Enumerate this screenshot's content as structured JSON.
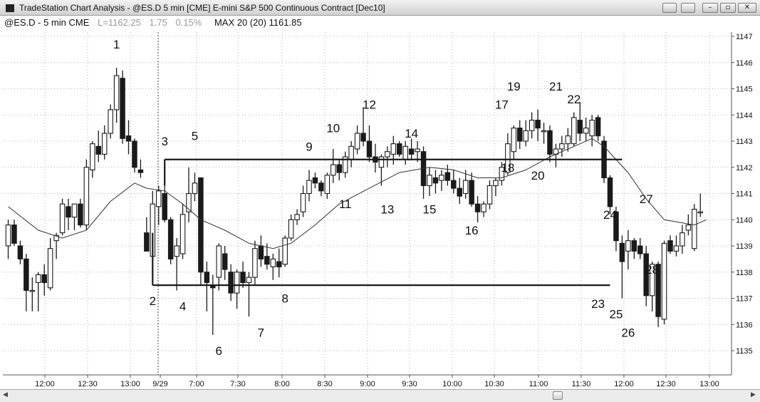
{
  "window": {
    "title": "TradeStation Chart Analysis - @ES.D 5 min [CME] E-mini S&P 500 Continuous Contract [Dec10]",
    "buttons": {
      "minimize": "–",
      "restore": "▫",
      "close": "✕"
    }
  },
  "info": {
    "symbol": "@ES.D - 5 min CME",
    "last": "L=1162.25",
    "change": "1.75",
    "change_pct": "0.15%",
    "study": "MAX 20 (20) 1161.85"
  },
  "colors": {
    "up_fill": "#ffffff",
    "down_fill": "#1a1a1a",
    "outline": "#1a1a1a",
    "ma": "#333333",
    "grid": "#b5b5b5"
  },
  "chart_data": {
    "type": "candlestick",
    "y_ticks": [
      1135,
      1136,
      1137,
      1138,
      1139,
      1140,
      1141,
      1142,
      1143,
      1144,
      1145,
      1146,
      1147
    ],
    "ylim": [
      1134.2,
      1147.4
    ],
    "x_tick_labels": [
      "12:00",
      "12:30",
      "13:00",
      "9/29",
      "7:00",
      "7:30",
      "8:00",
      "8:30",
      "9:00",
      "9:30",
      "10:00",
      "10:30",
      "11:00",
      "11:30",
      "12:00",
      "12:30",
      "13:00"
    ],
    "session_break_after_bar": 23,
    "candles": [
      {
        "o": 1139.0,
        "h": 1140.0,
        "l": 1138.5,
        "c": 1139.8
      },
      {
        "o": 1139.8,
        "h": 1140.0,
        "l": 1139.0,
        "c": 1139.1
      },
      {
        "o": 1139.0,
        "h": 1139.2,
        "l": 1138.3,
        "c": 1138.5
      },
      {
        "o": 1138.5,
        "h": 1138.7,
        "l": 1136.5,
        "c": 1137.3
      },
      {
        "o": 1137.3,
        "h": 1137.8,
        "l": 1136.5,
        "c": 1137.3
      },
      {
        "o": 1137.6,
        "h": 1138.0,
        "l": 1136.5,
        "c": 1137.9
      },
      {
        "o": 1137.9,
        "h": 1138.3,
        "l": 1137.1,
        "c": 1137.6
      },
      {
        "o": 1137.4,
        "h": 1139.3,
        "l": 1137.3,
        "c": 1138.9
      },
      {
        "o": 1139.2,
        "h": 1139.5,
        "l": 1138.5,
        "c": 1139.4
      },
      {
        "o": 1139.5,
        "h": 1140.8,
        "l": 1139.4,
        "c": 1140.6
      },
      {
        "o": 1140.5,
        "h": 1140.8,
        "l": 1139.6,
        "c": 1140.1
      },
      {
        "o": 1140.1,
        "h": 1140.6,
        "l": 1139.6,
        "c": 1140.6
      },
      {
        "o": 1140.6,
        "h": 1140.8,
        "l": 1139.7,
        "c": 1139.8
      },
      {
        "o": 1139.8,
        "h": 1142.3,
        "l": 1139.6,
        "c": 1142.0
      },
      {
        "o": 1141.9,
        "h": 1143.0,
        "l": 1141.6,
        "c": 1142.9
      },
      {
        "o": 1142.8,
        "h": 1143.4,
        "l": 1142.2,
        "c": 1142.5
      },
      {
        "o": 1142.5,
        "h": 1143.6,
        "l": 1142.3,
        "c": 1143.3
      },
      {
        "o": 1143.3,
        "h": 1144.4,
        "l": 1143.1,
        "c": 1144.2
      },
      {
        "o": 1144.2,
        "h": 1145.8,
        "l": 1143.7,
        "c": 1145.5
      },
      {
        "o": 1145.4,
        "h": 1145.7,
        "l": 1142.9,
        "c": 1143.1
      },
      {
        "o": 1143.2,
        "h": 1143.8,
        "l": 1142.5,
        "c": 1143.0
      },
      {
        "o": 1143.0,
        "h": 1143.1,
        "l": 1141.8,
        "c": 1142.0
      },
      {
        "o": 1141.9,
        "h": 1142.3,
        "l": 1141.6,
        "c": 1141.8
      },
      {
        "o": 1139.5,
        "h": 1140.1,
        "l": 1138.8,
        "c": 1138.8
      },
      {
        "o": 1138.6,
        "h": 1141.1,
        "l": 1137.8,
        "c": 1140.6
      },
      {
        "o": 1140.5,
        "h": 1141.3,
        "l": 1139.8,
        "c": 1141.1
      },
      {
        "o": 1141.0,
        "h": 1141.3,
        "l": 1139.9,
        "c": 1140.0
      },
      {
        "o": 1140.0,
        "h": 1140.1,
        "l": 1138.3,
        "c": 1138.5
      },
      {
        "o": 1138.6,
        "h": 1139.3,
        "l": 1137.3,
        "c": 1139.0
      },
      {
        "o": 1138.7,
        "h": 1140.6,
        "l": 1138.5,
        "c": 1140.2
      },
      {
        "o": 1140.3,
        "h": 1142.0,
        "l": 1139.9,
        "c": 1141.0
      },
      {
        "o": 1141.0,
        "h": 1141.8,
        "l": 1140.7,
        "c": 1141.4
      },
      {
        "o": 1141.6,
        "h": 1141.6,
        "l": 1137.5,
        "c": 1138.0
      },
      {
        "o": 1138.0,
        "h": 1138.4,
        "l": 1136.5,
        "c": 1137.6
      },
      {
        "o": 1137.5,
        "h": 1137.9,
        "l": 1135.6,
        "c": 1137.4
      },
      {
        "o": 1137.8,
        "h": 1139.1,
        "l": 1137.3,
        "c": 1139.0
      },
      {
        "o": 1138.7,
        "h": 1139.0,
        "l": 1137.7,
        "c": 1138.1
      },
      {
        "o": 1138.0,
        "h": 1138.3,
        "l": 1136.9,
        "c": 1137.2
      },
      {
        "o": 1137.2,
        "h": 1138.1,
        "l": 1136.6,
        "c": 1138.0
      },
      {
        "o": 1138.0,
        "h": 1138.4,
        "l": 1137.4,
        "c": 1137.6
      },
      {
        "o": 1137.6,
        "h": 1138.0,
        "l": 1136.3,
        "c": 1137.8
      },
      {
        "o": 1137.8,
        "h": 1139.2,
        "l": 1137.5,
        "c": 1138.9
      },
      {
        "o": 1139.0,
        "h": 1139.4,
        "l": 1138.2,
        "c": 1138.5
      },
      {
        "o": 1138.6,
        "h": 1139.1,
        "l": 1138.1,
        "c": 1138.3
      },
      {
        "o": 1138.2,
        "h": 1138.7,
        "l": 1137.7,
        "c": 1138.5
      },
      {
        "o": 1138.4,
        "h": 1138.9,
        "l": 1137.8,
        "c": 1138.2
      },
      {
        "o": 1138.3,
        "h": 1139.4,
        "l": 1138.2,
        "c": 1139.3
      },
      {
        "o": 1139.3,
        "h": 1140.2,
        "l": 1139.2,
        "c": 1140.0
      },
      {
        "o": 1140.0,
        "h": 1140.4,
        "l": 1139.8,
        "c": 1140.2
      },
      {
        "o": 1140.3,
        "h": 1141.3,
        "l": 1140.1,
        "c": 1141.0
      },
      {
        "o": 1141.0,
        "h": 1141.9,
        "l": 1140.7,
        "c": 1141.5
      },
      {
        "o": 1141.6,
        "h": 1141.8,
        "l": 1141.2,
        "c": 1141.4
      },
      {
        "o": 1141.4,
        "h": 1141.5,
        "l": 1140.9,
        "c": 1141.1
      },
      {
        "o": 1141.0,
        "h": 1141.8,
        "l": 1140.8,
        "c": 1141.7
      },
      {
        "o": 1141.7,
        "h": 1142.7,
        "l": 1141.4,
        "c": 1142.1
      },
      {
        "o": 1142.1,
        "h": 1142.3,
        "l": 1141.5,
        "c": 1141.8
      },
      {
        "o": 1141.8,
        "h": 1142.6,
        "l": 1141.6,
        "c": 1142.4
      },
      {
        "o": 1142.3,
        "h": 1143.0,
        "l": 1142.0,
        "c": 1142.8
      },
      {
        "o": 1142.7,
        "h": 1143.6,
        "l": 1142.5,
        "c": 1143.3
      },
      {
        "o": 1143.3,
        "h": 1144.3,
        "l": 1142.8,
        "c": 1143.0
      },
      {
        "o": 1143.0,
        "h": 1143.6,
        "l": 1142.2,
        "c": 1142.4
      },
      {
        "o": 1142.4,
        "h": 1142.9,
        "l": 1141.8,
        "c": 1142.2
      },
      {
        "o": 1142.0,
        "h": 1142.5,
        "l": 1141.3,
        "c": 1142.4
      },
      {
        "o": 1142.4,
        "h": 1142.8,
        "l": 1142.0,
        "c": 1142.6
      },
      {
        "o": 1142.5,
        "h": 1143.2,
        "l": 1142.1,
        "c": 1142.9
      },
      {
        "o": 1142.9,
        "h": 1143.0,
        "l": 1142.4,
        "c": 1142.5
      },
      {
        "o": 1142.3,
        "h": 1143.0,
        "l": 1142.1,
        "c": 1142.8
      },
      {
        "o": 1142.7,
        "h": 1143.1,
        "l": 1142.3,
        "c": 1142.5
      },
      {
        "o": 1142.6,
        "h": 1143.0,
        "l": 1142.2,
        "c": 1142.7
      },
      {
        "o": 1142.6,
        "h": 1142.8,
        "l": 1140.8,
        "c": 1141.3
      },
      {
        "o": 1141.3,
        "h": 1142.0,
        "l": 1140.9,
        "c": 1141.7
      },
      {
        "o": 1141.6,
        "h": 1141.9,
        "l": 1141.0,
        "c": 1141.4
      },
      {
        "o": 1141.5,
        "h": 1141.9,
        "l": 1141.1,
        "c": 1141.7
      },
      {
        "o": 1141.8,
        "h": 1142.1,
        "l": 1141.3,
        "c": 1141.5
      },
      {
        "o": 1141.5,
        "h": 1141.9,
        "l": 1141.0,
        "c": 1141.2
      },
      {
        "o": 1141.2,
        "h": 1141.6,
        "l": 1140.6,
        "c": 1140.9
      },
      {
        "o": 1141.0,
        "h": 1141.9,
        "l": 1140.8,
        "c": 1141.5
      },
      {
        "o": 1141.5,
        "h": 1141.8,
        "l": 1140.5,
        "c": 1140.6
      },
      {
        "o": 1140.6,
        "h": 1140.9,
        "l": 1139.9,
        "c": 1140.3
      },
      {
        "o": 1140.3,
        "h": 1140.7,
        "l": 1140.1,
        "c": 1140.6
      },
      {
        "o": 1140.6,
        "h": 1141.5,
        "l": 1140.4,
        "c": 1141.3
      },
      {
        "o": 1141.3,
        "h": 1141.6,
        "l": 1140.9,
        "c": 1141.5
      },
      {
        "o": 1141.5,
        "h": 1142.2,
        "l": 1141.3,
        "c": 1142.0
      },
      {
        "o": 1141.8,
        "h": 1143.3,
        "l": 1141.7,
        "c": 1142.9
      },
      {
        "o": 1142.6,
        "h": 1143.6,
        "l": 1142.3,
        "c": 1143.5
      },
      {
        "o": 1143.5,
        "h": 1143.8,
        "l": 1142.7,
        "c": 1143.0
      },
      {
        "o": 1143.0,
        "h": 1143.8,
        "l": 1142.8,
        "c": 1143.4
      },
      {
        "o": 1143.4,
        "h": 1144.1,
        "l": 1143.1,
        "c": 1143.8
      },
      {
        "o": 1143.8,
        "h": 1144.2,
        "l": 1143.0,
        "c": 1143.5
      },
      {
        "o": 1143.4,
        "h": 1143.7,
        "l": 1142.9,
        "c": 1143.4
      },
      {
        "o": 1143.4,
        "h": 1143.6,
        "l": 1142.2,
        "c": 1142.5
      },
      {
        "o": 1142.5,
        "h": 1142.9,
        "l": 1142.0,
        "c": 1142.7
      },
      {
        "o": 1142.7,
        "h": 1143.2,
        "l": 1142.4,
        "c": 1142.9
      },
      {
        "o": 1142.9,
        "h": 1143.5,
        "l": 1142.6,
        "c": 1143.2
      },
      {
        "o": 1142.9,
        "h": 1144.1,
        "l": 1142.8,
        "c": 1143.9
      },
      {
        "o": 1143.8,
        "h": 1144.5,
        "l": 1143.0,
        "c": 1143.3
      },
      {
        "o": 1143.3,
        "h": 1143.9,
        "l": 1143.0,
        "c": 1143.5
      },
      {
        "o": 1143.2,
        "h": 1144.0,
        "l": 1142.8,
        "c": 1143.8
      },
      {
        "o": 1143.9,
        "h": 1144.0,
        "l": 1143.0,
        "c": 1143.2
      },
      {
        "o": 1143.0,
        "h": 1143.2,
        "l": 1141.4,
        "c": 1141.6
      },
      {
        "o": 1141.6,
        "h": 1141.7,
        "l": 1140.2,
        "c": 1140.5
      },
      {
        "o": 1140.3,
        "h": 1140.5,
        "l": 1138.8,
        "c": 1139.2
      },
      {
        "o": 1139.1,
        "h": 1139.4,
        "l": 1137.0,
        "c": 1138.4
      },
      {
        "o": 1138.8,
        "h": 1139.6,
        "l": 1138.1,
        "c": 1139.2
      },
      {
        "o": 1139.2,
        "h": 1139.3,
        "l": 1138.5,
        "c": 1138.8
      },
      {
        "o": 1139.0,
        "h": 1139.3,
        "l": 1138.5,
        "c": 1138.7
      },
      {
        "o": 1138.7,
        "h": 1139.0,
        "l": 1136.7,
        "c": 1137.1
      },
      {
        "o": 1137.1,
        "h": 1138.4,
        "l": 1136.5,
        "c": 1138.3
      },
      {
        "o": 1138.3,
        "h": 1138.4,
        "l": 1135.9,
        "c": 1136.3
      },
      {
        "o": 1136.2,
        "h": 1139.2,
        "l": 1136.0,
        "c": 1139.1
      },
      {
        "o": 1139.2,
        "h": 1139.4,
        "l": 1138.7,
        "c": 1138.8
      },
      {
        "o": 1138.8,
        "h": 1139.4,
        "l": 1138.6,
        "c": 1139.0
      },
      {
        "o": 1139.0,
        "h": 1139.8,
        "l": 1138.7,
        "c": 1139.5
      },
      {
        "o": 1139.6,
        "h": 1140.2,
        "l": 1139.4,
        "c": 1139.8
      },
      {
        "o": 1138.9,
        "h": 1140.6,
        "l": 1138.8,
        "c": 1140.4
      },
      {
        "o": 1140.3,
        "h": 1141.0,
        "l": 1140.1,
        "c": 1140.3
      }
    ],
    "moving_average": [
      {
        "bar": 0,
        "v": 1140.5
      },
      {
        "bar": 5,
        "v": 1139.6
      },
      {
        "bar": 9,
        "v": 1139.3
      },
      {
        "bar": 13,
        "v": 1139.6
      },
      {
        "bar": 17,
        "v": 1140.7
      },
      {
        "bar": 21,
        "v": 1141.4
      },
      {
        "bar": 23,
        "v": 1141.2
      },
      {
        "bar": 26,
        "v": 1141.1
      },
      {
        "bar": 29,
        "v": 1140.6
      },
      {
        "bar": 32,
        "v": 1140.0
      },
      {
        "bar": 36,
        "v": 1139.6
      },
      {
        "bar": 40,
        "v": 1139.1
      },
      {
        "bar": 44,
        "v": 1138.9
      },
      {
        "bar": 47,
        "v": 1139.1
      },
      {
        "bar": 51,
        "v": 1139.8
      },
      {
        "bar": 55,
        "v": 1140.6
      },
      {
        "bar": 60,
        "v": 1141.2
      },
      {
        "bar": 65,
        "v": 1141.8
      },
      {
        "bar": 70,
        "v": 1142.0
      },
      {
        "bar": 74,
        "v": 1141.9
      },
      {
        "bar": 78,
        "v": 1141.6
      },
      {
        "bar": 82,
        "v": 1141.6
      },
      {
        "bar": 86,
        "v": 1141.9
      },
      {
        "bar": 90,
        "v": 1142.4
      },
      {
        "bar": 94,
        "v": 1142.8
      },
      {
        "bar": 97,
        "v": 1143.1
      },
      {
        "bar": 99,
        "v": 1142.8
      },
      {
        "bar": 103,
        "v": 1141.8
      },
      {
        "bar": 106,
        "v": 1140.8
      },
      {
        "bar": 109,
        "v": 1140.0
      },
      {
        "bar": 114,
        "v": 1139.8
      },
      {
        "bar": 116,
        "v": 1140.0
      }
    ],
    "lines": [
      {
        "from_bar": 24,
        "to_bar": 24,
        "y1": 1137.5,
        "y2": 1139.5
      },
      {
        "from_bar": 24,
        "to_bar": 100,
        "y1": 1137.5,
        "y2": 1137.5
      },
      {
        "from_bar": 26,
        "to_bar": 26,
        "y1": 1141.3,
        "y2": 1142.3
      },
      {
        "from_bar": 26,
        "to_bar": 102,
        "y1": 1142.3,
        "y2": 1142.3
      }
    ],
    "annotations": [
      {
        "text": "1",
        "bar": 18,
        "y": 1146.7
      },
      {
        "text": "2",
        "bar": 24,
        "y": 1136.9
      },
      {
        "text": "3",
        "bar": 26,
        "y": 1143.0
      },
      {
        "text": "4",
        "bar": 29,
        "y": 1136.7
      },
      {
        "text": "5",
        "bar": 31,
        "y": 1143.2
      },
      {
        "text": "6",
        "bar": 35,
        "y": 1135.0
      },
      {
        "text": "7",
        "bar": 42,
        "y": 1135.7
      },
      {
        "text": "8",
        "bar": 46,
        "y": 1137.0
      },
      {
        "text": "9",
        "bar": 50,
        "y": 1142.8
      },
      {
        "text": "10",
        "bar": 54,
        "y": 1143.5
      },
      {
        "text": "11",
        "bar": 56,
        "y": 1140.6
      },
      {
        "text": "12",
        "bar": 60,
        "y": 1144.4
      },
      {
        "text": "13",
        "bar": 63,
        "y": 1140.4
      },
      {
        "text": "14",
        "bar": 67,
        "y": 1143.3
      },
      {
        "text": "15",
        "bar": 70,
        "y": 1140.4
      },
      {
        "text": "16",
        "bar": 77,
        "y": 1139.6
      },
      {
        "text": "17",
        "bar": 82,
        "y": 1144.4
      },
      {
        "text": "18",
        "bar": 83,
        "y": 1142.0
      },
      {
        "text": "19",
        "bar": 84,
        "y": 1145.1
      },
      {
        "text": "20",
        "bar": 88,
        "y": 1141.7
      },
      {
        "text": "21",
        "bar": 91,
        "y": 1145.1
      },
      {
        "text": "22",
        "bar": 94,
        "y": 1144.6
      },
      {
        "text": "23",
        "bar": 98,
        "y": 1136.8
      },
      {
        "text": "24",
        "bar": 100,
        "y": 1140.2
      },
      {
        "text": "25",
        "bar": 101,
        "y": 1136.4
      },
      {
        "text": "26",
        "bar": 103,
        "y": 1135.7
      },
      {
        "text": "27",
        "bar": 106,
        "y": 1140.8
      },
      {
        "text": "28",
        "bar": 107,
        "y": 1138.1
      }
    ]
  }
}
